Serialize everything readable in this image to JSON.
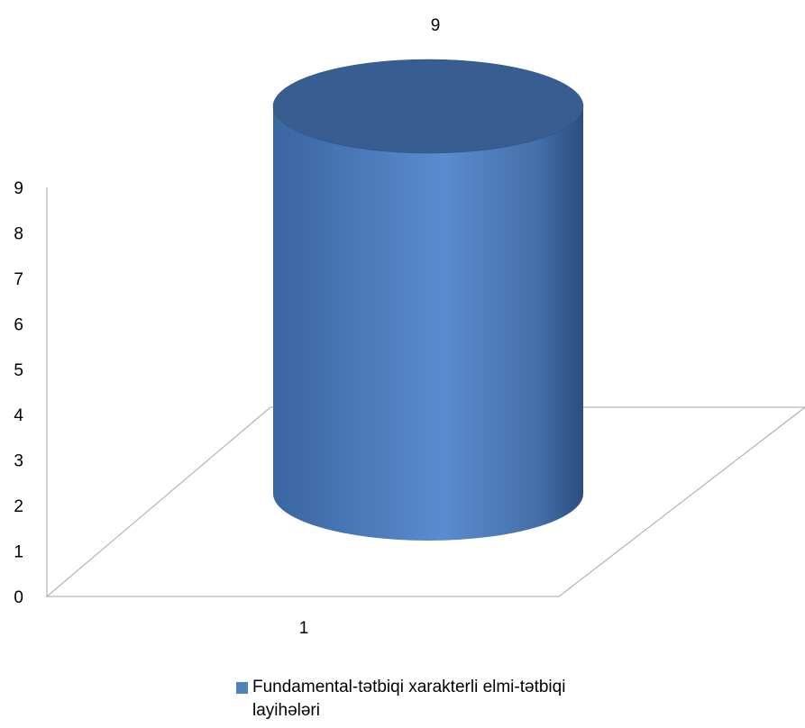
{
  "chart_data": {
    "type": "bar",
    "bar_shape": "cylinder",
    "categories": [
      "1"
    ],
    "series": [
      {
        "name": "Fundamental-tətbiqi xarakterli elmi-tətbiqi layihələri",
        "values": [
          9
        ],
        "color": "#4f81bd"
      }
    ],
    "data_labels": [
      "9"
    ],
    "y_ticks": [
      "0",
      "1",
      "2",
      "3",
      "4",
      "5",
      "6",
      "7",
      "8",
      "9"
    ],
    "ylim": [
      0,
      9
    ],
    "title": "",
    "xlabel": "",
    "ylabel": "",
    "grid": false,
    "legend_position": "bottom"
  }
}
